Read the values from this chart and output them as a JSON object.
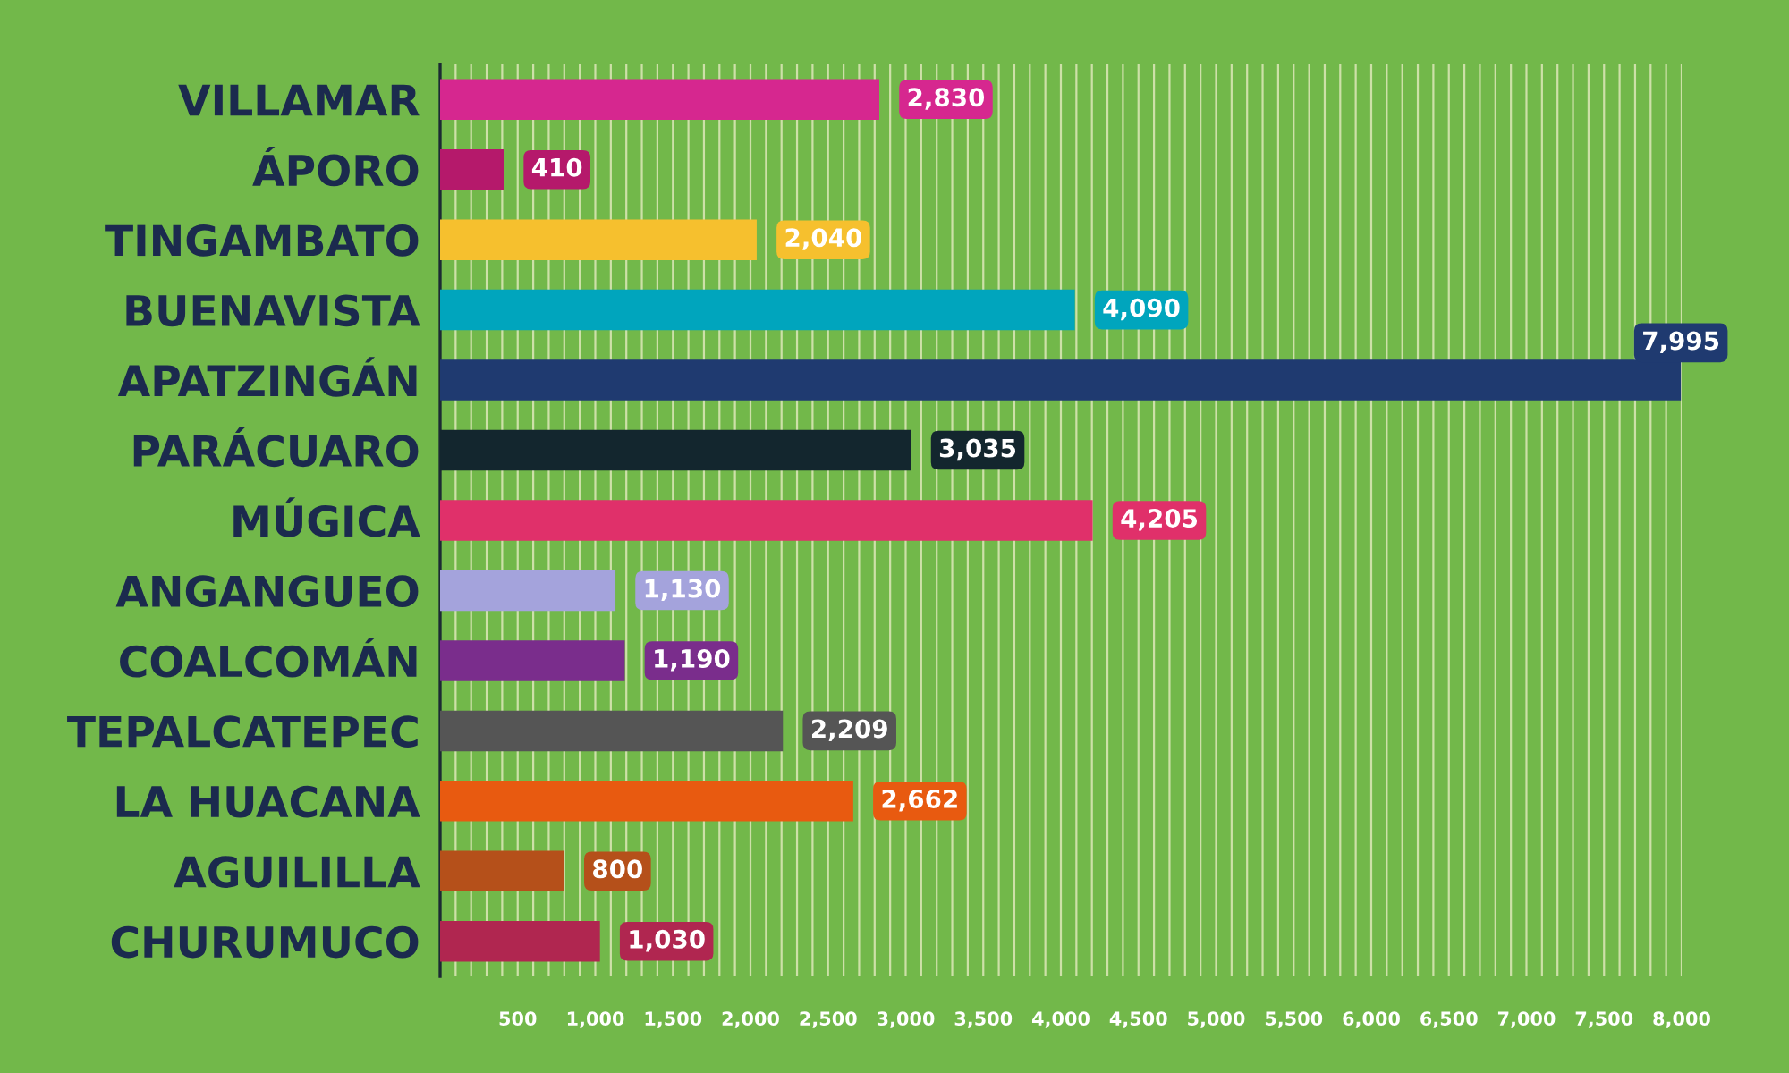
{
  "chart_data": {
    "type": "bar",
    "orientation": "horizontal",
    "categories": [
      "VILLAMAR",
      "ÁPORO",
      "TINGAMBATO",
      "BUENAVISTA",
      "APATZINGÁN",
      "PARÁCUARO",
      "MÚGICA",
      "ANGANGUEO",
      "COALCOMÁN",
      "TEPALCATEPEC",
      "LA HUACANA",
      "AGUILILLA",
      "CHURUMUCO"
    ],
    "values": [
      2830,
      410,
      2040,
      4090,
      7995,
      3035,
      4205,
      1130,
      1190,
      2209,
      2662,
      800,
      1030
    ],
    "colors": [
      "#d6278f",
      "#b5196b",
      "#f6c02e",
      "#00a5bd",
      "#1f3a70",
      "#13262e",
      "#e0306a",
      "#a4a3dc",
      "#7a2d8c",
      "#555555",
      "#e85a10",
      "#b5501a",
      "#b02650"
    ],
    "value_labels": [
      "2,830",
      "410",
      "2,040",
      "4,090",
      "7,995",
      "3,035",
      "4,205",
      "1,130",
      "1,190",
      "2,209",
      "2,662",
      "800",
      "1,030"
    ],
    "xlim": [
      0,
      8000
    ],
    "xticks": [
      {
        "value": 100,
        "label": null
      },
      {
        "value": 200,
        "label": null
      },
      {
        "value": 300,
        "label": null
      },
      {
        "value": 400,
        "label": null
      },
      500,
      {
        "value": 600,
        "label": null
      },
      {
        "value": 700,
        "label": null
      },
      {
        "value": 800,
        "label": null
      },
      {
        "value": 900,
        "label": null
      },
      {
        "value": 1000,
        "label": "1,000"
      },
      {
        "value": 1100,
        "label": null
      },
      {
        "value": 1200,
        "label": null
      },
      {
        "value": 1300,
        "label": null
      },
      {
        "value": 1400,
        "label": null
      },
      {
        "value": 1500,
        "label": "1,500"
      },
      {
        "value": 1600,
        "label": null
      },
      {
        "value": 1700,
        "label": null
      },
      {
        "value": 1800,
        "label": null
      },
      {
        "value": 1900,
        "label": null
      },
      {
        "value": 2000,
        "label": "2,000"
      },
      {
        "value": 2100,
        "label": null
      },
      {
        "value": 2200,
        "label": null
      },
      {
        "value": 2300,
        "label": null
      },
      {
        "value": 2400,
        "label": null
      },
      {
        "value": 2500,
        "label": "2,500"
      },
      {
        "value": 2600,
        "label": null
      },
      {
        "value": 2700,
        "label": null
      },
      {
        "value": 2800,
        "label": null
      },
      {
        "value": 2900,
        "label": null
      },
      {
        "value": 3000,
        "label": "3,000"
      },
      {
        "value": 3100,
        "label": null
      },
      {
        "value": 3200,
        "label": null
      },
      {
        "value": 3300,
        "label": null
      },
      {
        "value": 3400,
        "label": null
      },
      {
        "value": 3500,
        "label": "3,500"
      },
      {
        "value": 3600,
        "label": null
      },
      {
        "value": 3700,
        "label": null
      },
      {
        "value": 3800,
        "label": null
      },
      {
        "value": 3900,
        "label": null
      },
      {
        "value": 4000,
        "label": "4,000"
      },
      {
        "value": 4100,
        "label": null
      },
      {
        "value": 4200,
        "label": null
      },
      {
        "value": 4300,
        "label": null
      },
      {
        "value": 4400,
        "label": null
      },
      {
        "value": 4500,
        "label": "4,500"
      },
      {
        "value": 4600,
        "label": null
      },
      {
        "value": 4700,
        "label": null
      },
      {
        "value": 4800,
        "label": null
      },
      {
        "value": 4900,
        "label": null
      },
      {
        "value": 5000,
        "label": "5,000"
      },
      {
        "value": 5100,
        "label": null
      },
      {
        "value": 5200,
        "label": null
      },
      {
        "value": 5300,
        "label": null
      },
      {
        "value": 5400,
        "label": null
      },
      {
        "value": 5500,
        "label": "5,500"
      },
      {
        "value": 5600,
        "label": null
      },
      {
        "value": 5700,
        "label": null
      },
      {
        "value": 5800,
        "label": null
      },
      {
        "value": 5900,
        "label": null
      },
      {
        "value": 6000,
        "label": "6,000"
      },
      {
        "value": 6100,
        "label": null
      },
      {
        "value": 6200,
        "label": null
      },
      {
        "value": 6300,
        "label": null
      },
      {
        "value": 6400,
        "label": null
      },
      {
        "value": 6500,
        "label": "6,500"
      },
      {
        "value": 6600,
        "label": null
      },
      {
        "value": 6700,
        "label": null
      },
      {
        "value": 6800,
        "label": null
      },
      {
        "value": 6900,
        "label": null
      },
      {
        "value": 7000,
        "label": "7,000"
      },
      {
        "value": 7100,
        "label": null
      },
      {
        "value": 7200,
        "label": null
      },
      {
        "value": 7300,
        "label": null
      },
      {
        "value": 7400,
        "label": null
      },
      {
        "value": 7500,
        "label": "7,500"
      },
      {
        "value": 7600,
        "label": null
      },
      {
        "value": 7700,
        "label": null
      },
      {
        "value": 7800,
        "label": null
      },
      {
        "value": 7900,
        "label": null
      },
      {
        "value": 8000,
        "label": "8,000"
      }
    ],
    "grid": "x"
  }
}
